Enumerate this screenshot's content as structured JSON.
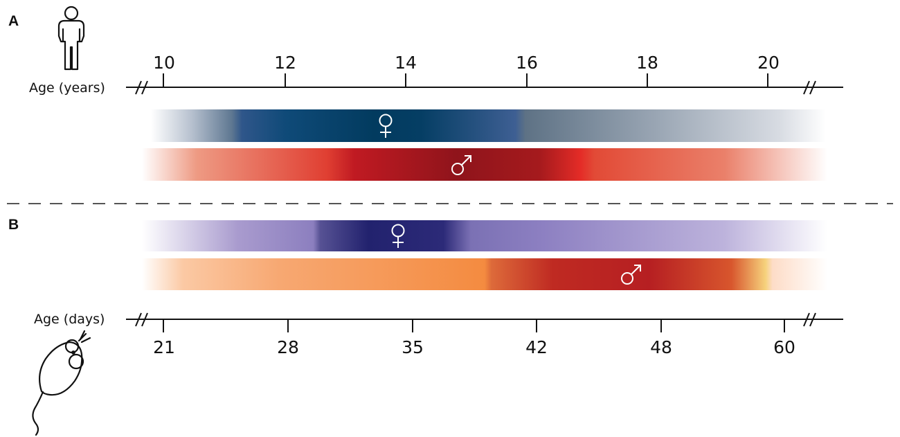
{
  "panels": {
    "a": {
      "letter": "A",
      "axis_title": "Age (years)",
      "ticks": [
        "10",
        "12",
        "14",
        "16",
        "18",
        "20"
      ],
      "bars": [
        {
          "sex": "female",
          "color": "#0a4068",
          "sym": "♀"
        },
        {
          "sex": "male",
          "color": "#b0151c",
          "sym": "♂"
        }
      ]
    },
    "b": {
      "letter": "B",
      "axis_title": "Age (days)",
      "ticks": [
        "21",
        "28",
        "35",
        "42",
        "48",
        "60"
      ],
      "bars": [
        {
          "sex": "female",
          "color": "#2e2a7a",
          "sym": "♀"
        },
        {
          "sex": "male",
          "color": "#b01a1a",
          "sym": "♂"
        }
      ]
    }
  },
  "icons": {
    "top": "human-icon",
    "bottom": "mouse-icon"
  }
}
